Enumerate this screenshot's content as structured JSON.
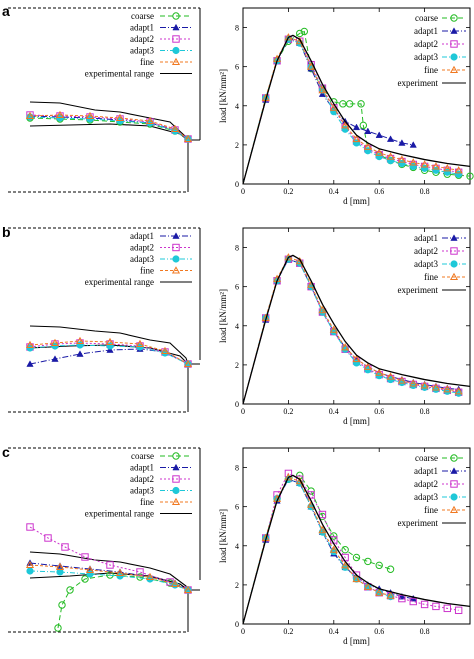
{
  "chart_data": [
    {
      "panel": "a",
      "part": "crack-path",
      "type": "line",
      "legend": [
        "coarse",
        "adapt1",
        "adapt2",
        "adapt3",
        "fine",
        "experimental range"
      ]
    },
    {
      "panel": "a",
      "part": "load-displacement",
      "type": "line",
      "xlabel": "d [mm]",
      "ylabel": "load [kN/mm²]",
      "xlim": [
        0,
        1.0
      ],
      "ylim": [
        0,
        9
      ],
      "xticks": [
        "0",
        "0.2",
        "0.4",
        "0.6",
        "0.8"
      ],
      "yticks": [
        "0",
        "2",
        "4",
        "6",
        "8"
      ],
      "legend_position": "top-right",
      "series": [
        {
          "name": "coarse",
          "x": [
            0,
            0.1,
            0.15,
            0.2,
            0.25,
            0.27,
            0.3,
            0.35,
            0.4,
            0.44,
            0.47,
            0.52,
            0.53,
            0.55,
            0.6,
            0.65,
            0.7,
            0.75,
            0.8,
            0.85,
            0.9,
            0.95,
            1.0
          ],
          "y": [
            0,
            4.4,
            6.3,
            7.3,
            7.7,
            7.8,
            5.9,
            4.9,
            4.2,
            4.1,
            4.1,
            4.1,
            3.0,
            1.8,
            1.5,
            1.2,
            1.0,
            0.85,
            0.7,
            0.6,
            0.5,
            0.45,
            0.4
          ]
        },
        {
          "name": "adapt1",
          "x": [
            0,
            0.1,
            0.15,
            0.2,
            0.25,
            0.3,
            0.35,
            0.4,
            0.45,
            0.5,
            0.55,
            0.6,
            0.65,
            0.7,
            0.75
          ],
          "y": [
            0,
            4.3,
            6.3,
            7.5,
            7.2,
            5.9,
            4.6,
            3.8,
            3.2,
            2.9,
            2.7,
            2.5,
            2.3,
            2.1,
            2.0
          ]
        },
        {
          "name": "adapt2",
          "x": [
            0,
            0.1,
            0.15,
            0.2,
            0.25,
            0.3,
            0.35,
            0.4,
            0.45,
            0.5,
            0.55,
            0.6,
            0.65,
            0.7,
            0.75,
            0.8,
            0.85,
            0.9,
            0.95
          ],
          "y": [
            0,
            4.4,
            6.3,
            7.4,
            7.3,
            6.1,
            4.9,
            3.9,
            2.9,
            2.2,
            1.8,
            1.5,
            1.3,
            1.15,
            1.0,
            0.9,
            0.8,
            0.7,
            0.6
          ]
        },
        {
          "name": "adapt3",
          "x": [
            0,
            0.1,
            0.15,
            0.2,
            0.25,
            0.3,
            0.35,
            0.4,
            0.45,
            0.5,
            0.55,
            0.6,
            0.65,
            0.7,
            0.75,
            0.8,
            0.85,
            0.9,
            0.95
          ],
          "y": [
            0,
            4.4,
            6.3,
            7.4,
            7.2,
            6.0,
            4.8,
            3.7,
            2.8,
            2.1,
            1.7,
            1.4,
            1.2,
            1.05,
            0.9,
            0.8,
            0.7,
            0.6,
            0.5
          ]
        },
        {
          "name": "fine",
          "x": [
            0,
            0.1,
            0.15,
            0.2,
            0.25,
            0.3,
            0.35,
            0.4,
            0.45,
            0.5,
            0.55,
            0.6,
            0.65,
            0.7,
            0.75,
            0.8,
            0.85,
            0.9,
            0.95
          ],
          "y": [
            0,
            4.4,
            6.4,
            7.5,
            7.3,
            6.0,
            4.8,
            3.9,
            3.0,
            2.3,
            1.9,
            1.6,
            1.4,
            1.25,
            1.1,
            1.0,
            0.9,
            0.8,
            0.7
          ]
        },
        {
          "name": "experiment",
          "x": [
            0,
            0.1,
            0.15,
            0.2,
            0.22,
            0.25,
            0.3,
            0.35,
            0.4,
            0.45,
            0.5,
            0.55,
            0.6,
            0.7,
            0.8,
            0.9,
            1.0
          ],
          "y": [
            0,
            4.3,
            6.3,
            7.5,
            7.6,
            7.4,
            6.3,
            5.1,
            4.1,
            3.2,
            2.5,
            2.1,
            1.8,
            1.5,
            1.25,
            1.05,
            0.9
          ]
        }
      ]
    },
    {
      "panel": "b",
      "part": "crack-path",
      "type": "line",
      "legend": [
        "adapt1",
        "adapt2",
        "adapt3",
        "fine",
        "experimental range"
      ]
    },
    {
      "panel": "b",
      "part": "load-displacement",
      "type": "line",
      "xlabel": "d [mm]",
      "ylabel": "load [kN/mm²]",
      "xlim": [
        0,
        1.0
      ],
      "ylim": [
        0,
        9
      ],
      "xticks": [
        "0",
        "0.2",
        "0.4",
        "0.6",
        "0.8"
      ],
      "yticks": [
        "0",
        "2",
        "4",
        "6",
        "8"
      ],
      "legend_position": "top-right",
      "series": [
        {
          "name": "adapt1",
          "x": [
            0,
            0.1,
            0.15,
            0.2,
            0.25,
            0.3,
            0.35,
            0.4,
            0.45,
            0.5,
            0.55,
            0.6,
            0.65,
            0.7,
            0.75,
            0.8,
            0.85,
            0.9,
            0.95
          ],
          "y": [
            0,
            4.3,
            6.3,
            7.4,
            7.2,
            6.0,
            4.7,
            3.7,
            2.9,
            2.3,
            1.9,
            1.6,
            1.4,
            1.25,
            1.1,
            1.0,
            0.9,
            0.8,
            0.75
          ]
        },
        {
          "name": "adapt2",
          "x": [
            0,
            0.1,
            0.15,
            0.2,
            0.25,
            0.3,
            0.35,
            0.4,
            0.45,
            0.5,
            0.55,
            0.6,
            0.65,
            0.7,
            0.75,
            0.8,
            0.85,
            0.9,
            0.95
          ],
          "y": [
            0,
            4.4,
            6.3,
            7.4,
            7.2,
            6.0,
            4.7,
            3.7,
            2.8,
            2.2,
            1.8,
            1.5,
            1.3,
            1.15,
            1.0,
            0.9,
            0.8,
            0.7,
            0.6
          ]
        },
        {
          "name": "adapt3",
          "x": [
            0,
            0.1,
            0.15,
            0.2,
            0.25,
            0.3,
            0.35,
            0.4,
            0.45,
            0.5,
            0.55,
            0.6,
            0.65,
            0.7,
            0.75,
            0.8,
            0.85,
            0.9,
            0.95
          ],
          "y": [
            0,
            4.4,
            6.3,
            7.4,
            7.2,
            6.0,
            4.7,
            3.7,
            2.8,
            2.1,
            1.75,
            1.45,
            1.25,
            1.1,
            0.95,
            0.85,
            0.75,
            0.65,
            0.55
          ]
        },
        {
          "name": "fine",
          "x": [
            0,
            0.1,
            0.15,
            0.2,
            0.25,
            0.3,
            0.35,
            0.4,
            0.45,
            0.5,
            0.55,
            0.6,
            0.65,
            0.7,
            0.75,
            0.8,
            0.85,
            0.9,
            0.95
          ],
          "y": [
            0,
            4.4,
            6.4,
            7.5,
            7.3,
            6.1,
            4.8,
            3.8,
            2.9,
            2.3,
            1.9,
            1.6,
            1.4,
            1.2,
            1.05,
            0.95,
            0.85,
            0.75,
            0.65
          ]
        },
        {
          "name": "experiment",
          "x": [
            0,
            0.1,
            0.15,
            0.2,
            0.22,
            0.25,
            0.3,
            0.35,
            0.4,
            0.45,
            0.5,
            0.55,
            0.6,
            0.7,
            0.8,
            0.9,
            1.0
          ],
          "y": [
            0,
            4.3,
            6.3,
            7.5,
            7.6,
            7.4,
            6.3,
            5.1,
            4.1,
            3.2,
            2.5,
            2.1,
            1.8,
            1.5,
            1.25,
            1.05,
            0.9
          ]
        }
      ]
    },
    {
      "panel": "c",
      "part": "crack-path",
      "type": "line",
      "legend": [
        "coarse",
        "adapt1",
        "adapt2",
        "adapt3",
        "fine",
        "experimental range"
      ]
    },
    {
      "panel": "c",
      "part": "load-displacement",
      "type": "line",
      "xlabel": "d [mm]",
      "ylabel": "load [kN/mm²]",
      "xlim": [
        0,
        1.0
      ],
      "ylim": [
        0,
        9
      ],
      "xticks": [
        "0",
        "0.2",
        "0.4",
        "0.6",
        "0.8"
      ],
      "yticks": [
        "0",
        "2",
        "4",
        "6",
        "8"
      ],
      "legend_position": "top-right",
      "series": [
        {
          "name": "coarse",
          "x": [
            0,
            0.1,
            0.15,
            0.2,
            0.25,
            0.3,
            0.35,
            0.4,
            0.45,
            0.5,
            0.55,
            0.6,
            0.65
          ],
          "y": [
            0,
            4.4,
            6.4,
            7.4,
            7.6,
            6.8,
            5.5,
            4.5,
            3.8,
            3.4,
            3.2,
            3.0,
            2.8
          ]
        },
        {
          "name": "adapt1",
          "x": [
            0,
            0.1,
            0.15,
            0.2,
            0.25,
            0.3,
            0.35,
            0.4,
            0.45,
            0.5,
            0.55,
            0.6,
            0.65,
            0.7,
            0.75
          ],
          "y": [
            0,
            4.3,
            6.3,
            7.4,
            7.2,
            6.0,
            4.7,
            3.6,
            2.9,
            2.4,
            2.0,
            1.8,
            1.6,
            1.4,
            1.3
          ]
        },
        {
          "name": "adapt2",
          "x": [
            0,
            0.1,
            0.15,
            0.2,
            0.25,
            0.3,
            0.35,
            0.4,
            0.45,
            0.5,
            0.55,
            0.6,
            0.65,
            0.7,
            0.75,
            0.8,
            0.85,
            0.9,
            0.95
          ],
          "y": [
            0,
            4.4,
            6.6,
            7.7,
            7.4,
            6.6,
            5.6,
            4.3,
            3.4,
            2.5,
            1.9,
            1.6,
            1.45,
            1.3,
            1.15,
            1.0,
            0.9,
            0.8,
            0.7
          ]
        },
        {
          "name": "adapt3",
          "x": [
            0,
            0.1,
            0.15,
            0.2,
            0.25,
            0.3,
            0.35,
            0.4,
            0.45,
            0.5,
            0.55,
            0.6,
            0.65
          ],
          "y": [
            0,
            4.4,
            6.4,
            7.4,
            7.2,
            6.0,
            4.7,
            3.7,
            2.9,
            2.3,
            1.9,
            1.6,
            1.4
          ]
        },
        {
          "name": "fine",
          "x": [
            0,
            0.1,
            0.15,
            0.2,
            0.25,
            0.3,
            0.35,
            0.4,
            0.45,
            0.5,
            0.55,
            0.6,
            0.65
          ],
          "y": [
            0,
            4.4,
            6.4,
            7.5,
            7.3,
            6.1,
            4.8,
            3.8,
            3.0,
            2.3,
            1.9,
            1.6,
            1.45
          ]
        },
        {
          "name": "experiment",
          "x": [
            0,
            0.1,
            0.15,
            0.2,
            0.22,
            0.25,
            0.3,
            0.35,
            0.4,
            0.45,
            0.5,
            0.55,
            0.6,
            0.7,
            0.8,
            0.9,
            1.0
          ],
          "y": [
            0,
            4.3,
            6.3,
            7.5,
            7.6,
            7.4,
            6.3,
            5.1,
            4.1,
            3.2,
            2.5,
            2.1,
            1.8,
            1.5,
            1.25,
            1.05,
            0.9
          ]
        }
      ]
    }
  ],
  "styles": {
    "coarse": {
      "color": "#22bb22",
      "marker": "circle",
      "dash": "5,3"
    },
    "adapt1": {
      "color": "#1a1aa6",
      "marker": "triangle",
      "dash": "6,2,1,2"
    },
    "adapt2": {
      "color": "#cc33cc",
      "marker": "square",
      "dash": "2,2"
    },
    "adapt3": {
      "color": "#1ec8d8",
      "marker": "dot",
      "dash": "5,2,1,2"
    },
    "fine": {
      "color": "#f07820",
      "marker": "triangle-open",
      "dash": "3,2"
    },
    "experiment": {
      "color": "#000000",
      "marker": "none",
      "dash": ""
    },
    "experimental range": {
      "color": "#000000",
      "marker": "none",
      "dash": ""
    }
  }
}
